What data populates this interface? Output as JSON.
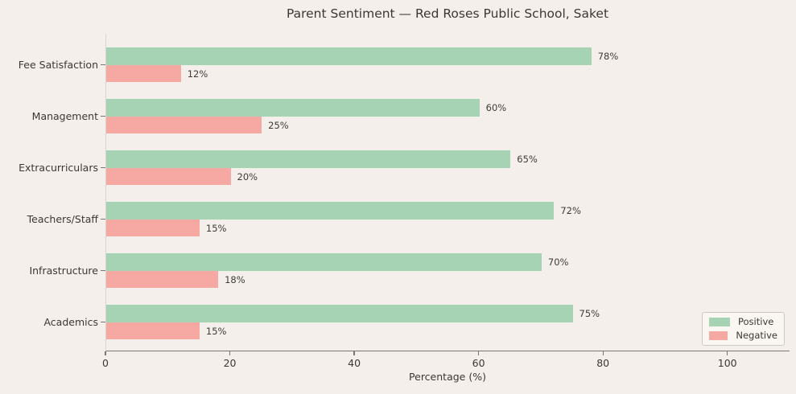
{
  "chart_data": {
    "type": "bar",
    "orientation": "horizontal",
    "title": "Parent Sentiment — Red Roses Public School, Saket",
    "categories": [
      "Fee Satisfaction",
      "Management",
      "Extracurriculars",
      "Teachers/Staff",
      "Infrastructure",
      "Academics"
    ],
    "categories_order": "top-to-bottom",
    "series": [
      {
        "name": "Positive",
        "color": "#a7d3b5",
        "values": [
          78,
          60,
          65,
          72,
          70,
          75
        ]
      },
      {
        "name": "Negative",
        "color": "#f6a8a3",
        "values": [
          12,
          25,
          20,
          15,
          18,
          15
        ]
      }
    ],
    "value_label_suffix": "%",
    "xlabel": "Percentage (%)",
    "x_ticks": [
      0,
      20,
      40,
      60,
      80,
      100
    ],
    "xlim": [
      0,
      110
    ],
    "grid": false,
    "legend_position": "lower right",
    "background_color": "#f4efea",
    "axis_color": "#7b7772",
    "text_color": "#3b3833"
  }
}
